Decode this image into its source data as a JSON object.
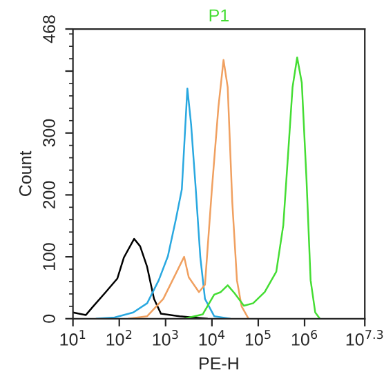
{
  "chart_data": {
    "type": "line",
    "title": "P1",
    "xlabel": "PE-H",
    "ylabel": "Count",
    "log": "x",
    "grid": false,
    "legend": false,
    "marker": "none",
    "line_style": "solid",
    "xlim": [
      10,
      19952623
    ],
    "xticks": [
      {
        "value": 10,
        "label": "10$^{1}$"
      },
      {
        "value": 100,
        "label": "10$^{2}$"
      },
      {
        "value": 1000,
        "label": "10$^{3}$"
      },
      {
        "value": 10000,
        "label": "10$^{4}$"
      },
      {
        "value": 100000,
        "label": "10$^{5}$"
      },
      {
        "value": 1000000,
        "label": "10$^{6}$"
      },
      {
        "value": 19952623,
        "label": "10$^{7.3}$"
      }
    ],
    "ylim": [
      0,
      468
    ],
    "yticks": [
      0,
      100,
      200,
      300,
      {
        "value": 400,
        "label": null
      },
      468
    ],
    "series": [
      {
        "color": "#000000",
        "x": [
          10,
          19,
          26,
          51,
          91,
          126,
          209,
          282,
          398,
          562,
          794,
          2000,
          4000,
          7900
        ],
        "values": [
          10,
          6,
          18,
          43,
          65,
          99,
          129,
          117,
          84,
          32,
          8,
          4,
          2,
          0
        ]
      },
      {
        "color": "#29a8e0",
        "x": [
          32,
          79,
          200,
          400,
          710,
          1120,
          1660,
          2240,
          2950,
          3550,
          4470,
          5620,
          7080,
          11200,
          24500
        ],
        "values": [
          0,
          2,
          10,
          25,
          62,
          101,
          160,
          209,
          372,
          314,
          210,
          99,
          32,
          4,
          0
        ]
      },
      {
        "color": "#f0a060",
        "x": [
          158,
          400,
          890,
          1410,
          2510,
          3160,
          5250,
          7080,
          10000,
          13800,
          17800,
          21900,
          27500,
          34700,
          43700,
          61700
        ],
        "values": [
          0,
          4,
          32,
          62,
          100,
          67,
          43,
          55,
          210,
          342,
          418,
          374,
          188,
          62,
          20,
          0
        ]
      },
      {
        "color": "#44dd33",
        "x": [
          2510,
          6310,
          11200,
          15500,
          21900,
          30900,
          49000,
          77600,
          138000,
          245000,
          347000,
          437000,
          550000,
          692000,
          871000,
          1100000,
          1350000,
          1700000,
          2140000
        ],
        "values": [
          0,
          7,
          39,
          43,
          54,
          41,
          21,
          25,
          43,
          76,
          151,
          262,
          374,
          422,
          381,
          225,
          62,
          10,
          0
        ]
      }
    ]
  }
}
